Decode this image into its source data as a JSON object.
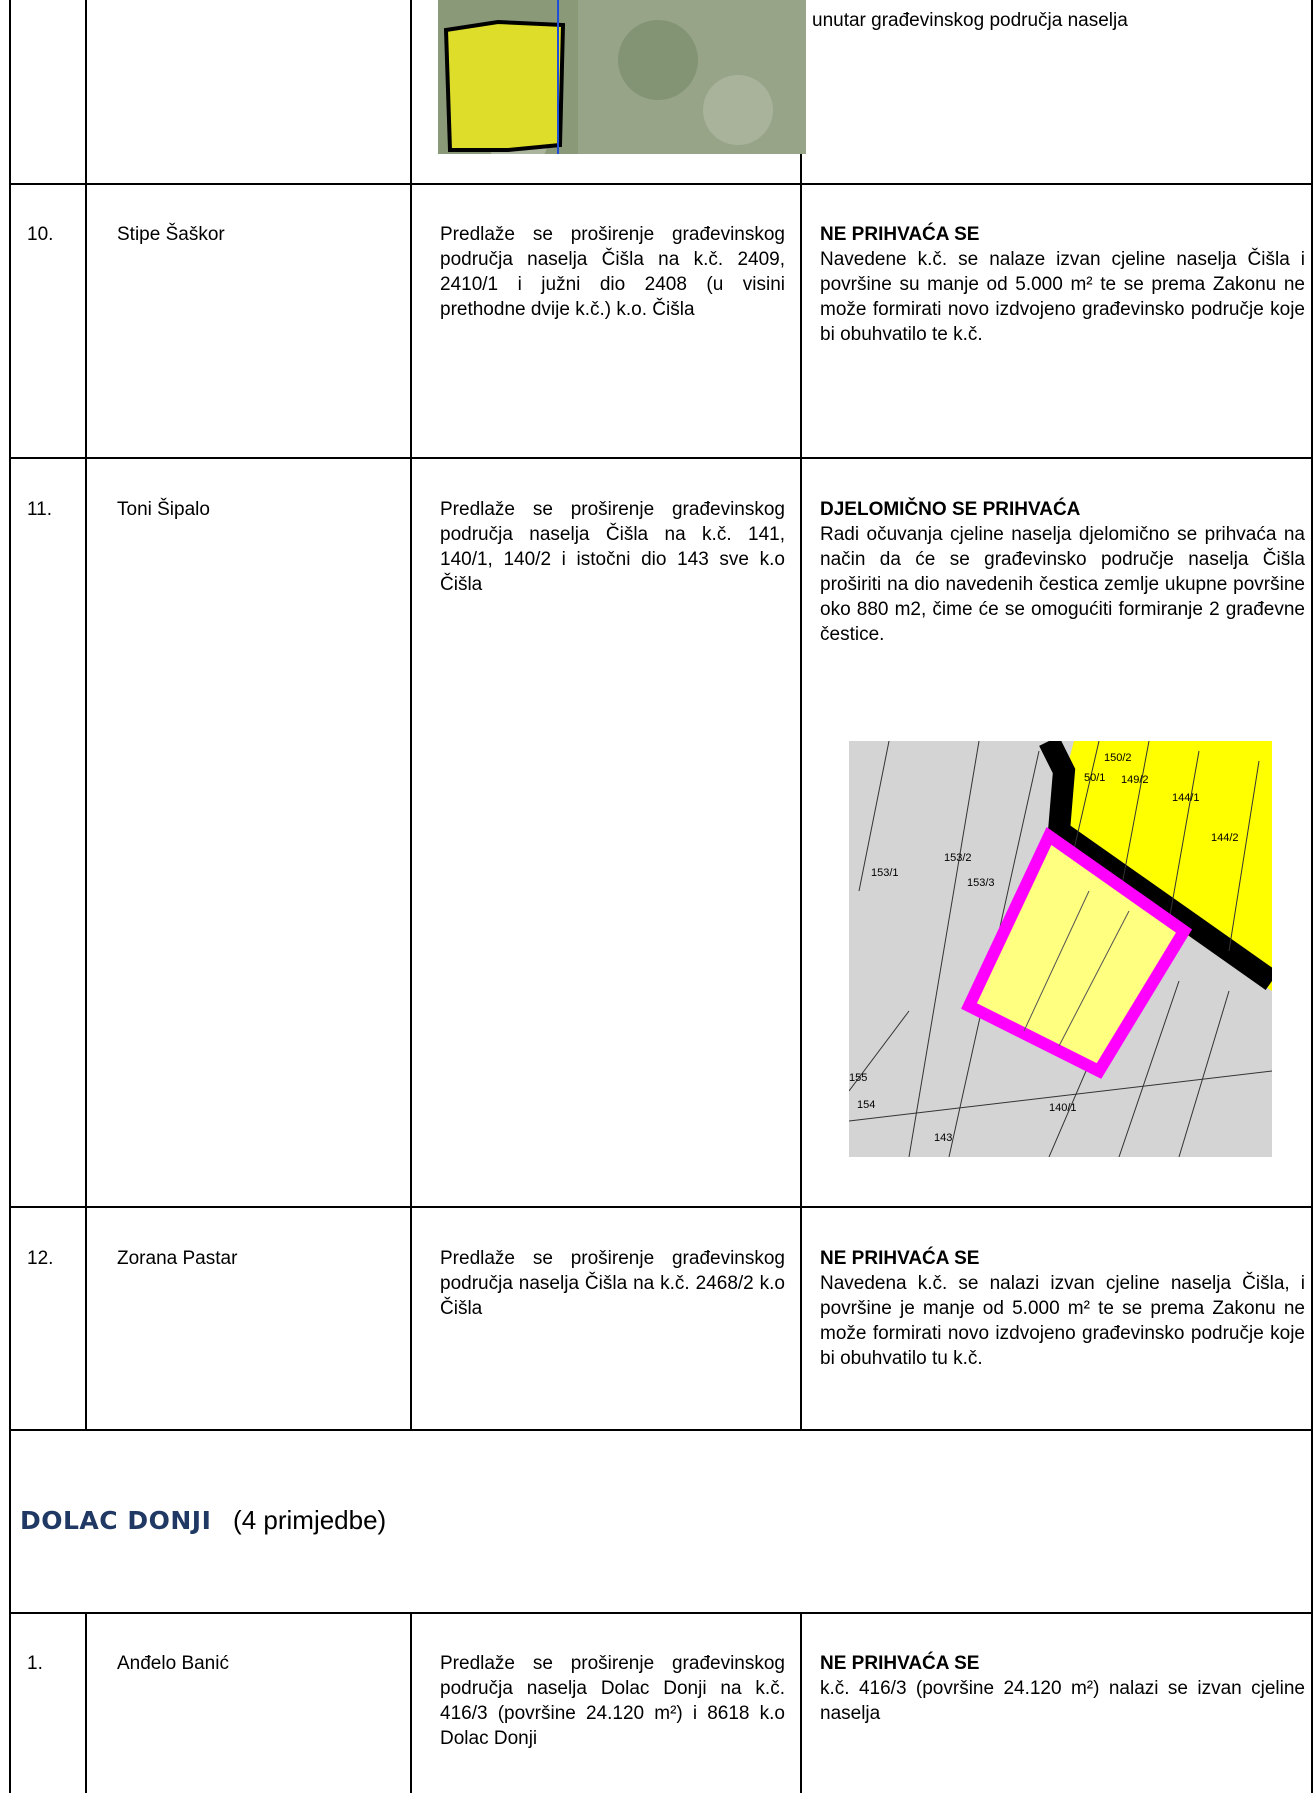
{
  "table": {
    "continuation": {
      "decision_text": "unutar građevinskog područja naselja"
    },
    "rows": [
      {
        "number": "10.",
        "name": "Stipe Šaškor",
        "proposal": "Predlaže se proširenje građevinskog područja naselja Čišla na k.č. 2409, 2410/1 i južni dio 2408 (u visini prethodne dvije k.č.) k.o. Čišla",
        "decision_title": "NE PRIHVAĆA SE",
        "decision_text": "Navedene k.č. se nalaze izvan cjeline naselja Čišla i površine su manje od 5.000 m² te se prema Zakonu ne može formirati novo izdvojeno građevinsko područje koje bi obuhvatilo te k.č."
      },
      {
        "number": "11.",
        "name": "Toni Šipalo",
        "proposal": "Predlaže se proširenje građevinskog područja naselja Čišla na k.č. 141, 140/1, 140/2 i istočni dio 143 sve k.o Čišla",
        "decision_title": "DJELOMIČNO SE PRIHVAĆA",
        "decision_text": "Radi očuvanja cjeline naselja djelomično se prihvaća na način da će se građevinsko područje naselja Čišla proširiti na dio navedenih čestica zemlje ukupne površine oko 880 m2, čime će se omogućiti formiranje 2 građevne čestice."
      },
      {
        "number": "12.",
        "name": "Zorana Pastar",
        "proposal": "Predlaže se proširenje građevinskog područja naselja Čišla na k.č. 2468/2 k.o Čišla",
        "decision_title": "NE PRIHVAĆA SE",
        "decision_text": "Navedena k.č. se nalazi izvan cjeline naselja Čišla, i površine je manje od 5.000 m² te se prema Zakonu ne može formirati novo izdvojeno građevinsko područje koje bi obuhvatilo tu k.č."
      }
    ],
    "section": {
      "title": "DOLAC DONJI",
      "count": "(4 primjedbe)"
    },
    "section_rows": [
      {
        "number": "1.",
        "name": "Anđelo Banić",
        "proposal": "Predlaže se proširenje građevinskog područja naselja Dolac Donji na k.č. 416/3 (površine 24.120 m²) i 8618 k.o Dolac Donji",
        "decision_title": "NE PRIHVAĆA SE",
        "decision_text": "k.č. 416/3 (površine 24.120 m²) nalazi se izvan cjeline naselja"
      }
    ]
  },
  "map": {
    "labels": [
      "150/2",
      "50/1",
      "149/2",
      "144/1",
      "144/2",
      "153/2",
      "153/1",
      "153/3",
      "155",
      "154",
      "140/1",
      "143"
    ]
  }
}
